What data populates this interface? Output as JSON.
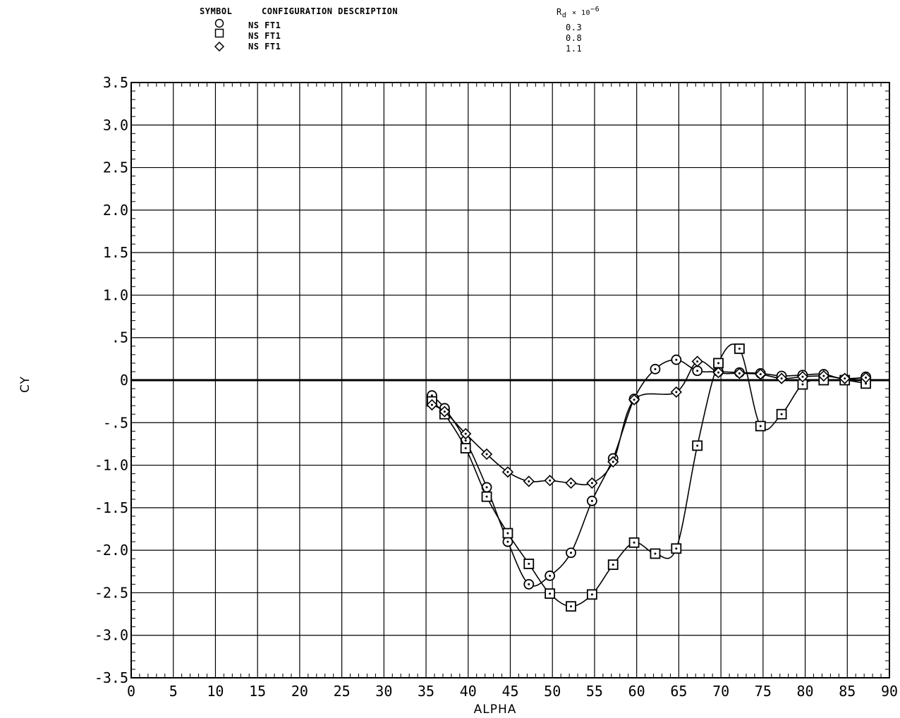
{
  "legend": {
    "header_symbol": "SYMBOL",
    "header_config": "CONFIGURATION DESCRIPTION",
    "header_re": "R",
    "header_re_sub": "d",
    "header_re_mult": "× 10",
    "header_re_exp": "−6",
    "rows": [
      {
        "symbol": "circle",
        "config": "NS FT1",
        "re": "0.3"
      },
      {
        "symbol": "square",
        "config": "NS FT1",
        "re": "0.8"
      },
      {
        "symbol": "diamond",
        "config": "NS FT1",
        "re": "1.1"
      }
    ]
  },
  "chart_data": {
    "type": "line",
    "xlabel": "ALPHA",
    "ylabel": "CY",
    "xlim": [
      0,
      90
    ],
    "ylim": [
      -3.5,
      3.5
    ],
    "x_ticks": [
      0,
      5,
      10,
      15,
      20,
      25,
      30,
      35,
      40,
      45,
      50,
      55,
      60,
      65,
      70,
      75,
      80,
      85,
      90
    ],
    "x_tick_labels": [
      "0",
      "5",
      "10",
      "15",
      "20",
      "25",
      "30",
      "35",
      "40",
      "45",
      "50",
      "55",
      "60",
      "65",
      "70",
      "75",
      "80",
      "85",
      "90"
    ],
    "y_ticks": [
      3.5,
      3.0,
      2.5,
      2.0,
      1.5,
      1.0,
      0.5,
      0,
      -0.5,
      -1.0,
      -1.5,
      -2.0,
      -2.5,
      -3.0,
      -3.5
    ],
    "y_tick_labels": [
      "3.5",
      "3.0",
      "2.5",
      "2.0",
      "1.5",
      "1.0",
      ".5",
      "0",
      "-.5",
      "-1.0",
      "-1.5",
      "-2.0",
      "-2.5",
      "-3.0",
      "-3.5"
    ],
    "grid": true,
    "legend_position": "top",
    "series": [
      {
        "name": "NS FT1 0.3",
        "marker": "circle",
        "x": [
          35.7,
          37.2,
          39.7,
          42.2,
          44.7,
          47.2,
          49.7,
          52.2,
          54.7,
          57.2,
          59.7,
          62.2,
          64.7,
          67.2,
          69.7,
          72.2,
          74.7,
          77.2,
          79.7,
          82.2,
          84.7,
          87.2
        ],
        "y": [
          -0.18,
          -0.33,
          -0.71,
          -1.26,
          -1.9,
          -2.4,
          -2.3,
          -2.03,
          -1.42,
          -0.92,
          -0.22,
          0.13,
          0.24,
          0.11,
          0.1,
          0.09,
          0.08,
          0.05,
          0.06,
          0.07,
          0.01,
          0.04
        ]
      },
      {
        "name": "NS FT1 0.8",
        "marker": "square",
        "x": [
          35.7,
          37.2,
          39.7,
          42.2,
          44.7,
          47.2,
          49.7,
          52.2,
          54.7,
          57.2,
          59.7,
          62.2,
          64.7,
          67.2,
          69.7,
          72.2,
          74.7,
          77.2,
          79.7,
          82.2,
          84.7,
          87.2
        ],
        "y": [
          -0.25,
          -0.4,
          -0.8,
          -1.37,
          -1.8,
          -2.16,
          -2.51,
          -2.66,
          -2.52,
          -2.17,
          -1.91,
          -2.04,
          -1.98,
          -0.77,
          0.2,
          0.37,
          -0.54,
          -0.4,
          -0.05,
          0.0,
          0.0,
          -0.04
        ]
      },
      {
        "name": "NS FT1 1.1",
        "marker": "diamond",
        "x": [
          35.7,
          37.2,
          39.7,
          42.2,
          44.7,
          47.2,
          49.7,
          52.2,
          54.7,
          57.2,
          59.7,
          64.7,
          67.2,
          69.7,
          72.2,
          74.7,
          77.2,
          79.7,
          82.2,
          84.7,
          87.2
        ],
        "y": [
          -0.29,
          -0.37,
          -0.63,
          -0.87,
          -1.08,
          -1.19,
          -1.18,
          -1.21,
          -1.21,
          -0.96,
          -0.23,
          -0.14,
          0.22,
          0.09,
          0.08,
          0.07,
          0.02,
          0.04,
          0.05,
          0.02,
          0.03
        ]
      }
    ]
  }
}
